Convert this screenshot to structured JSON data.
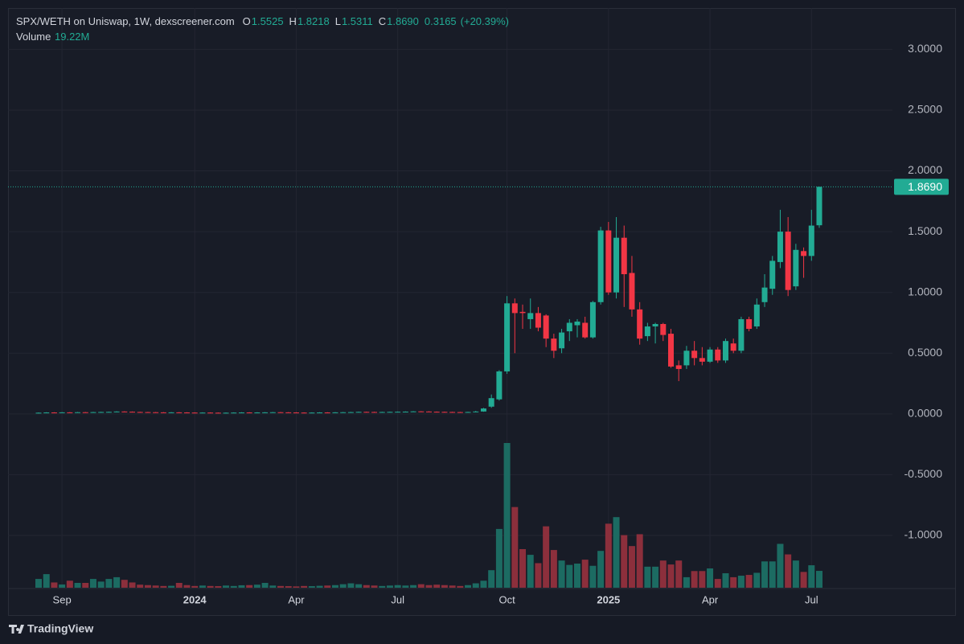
{
  "chart_data": {
    "type": "candlestick",
    "title": "SPX/WETH on Uniswap, 1W, dexscreener.com",
    "ohlc_legend": [
      {
        "key": "O",
        "value": 1.5525
      },
      {
        "key": "H",
        "value": 1.8218
      },
      {
        "key": "L",
        "value": 1.5311
      },
      {
        "key": "C",
        "value": 1.869,
        "label": "1.8690"
      }
    ],
    "change": 0.3165,
    "change_pct": {
      "value": 20.39,
      "label": "(+20.39%)"
    },
    "volume_legend": {
      "name": "Volume",
      "value": 19.22,
      "label": "19.22M"
    },
    "categories": [
      null,
      null,
      null,
      "Sep",
      null,
      null,
      null,
      null,
      null,
      null,
      null,
      null,
      null,
      null,
      null,
      null,
      null,
      null,
      null,
      null,
      "2024",
      null,
      null,
      null,
      null,
      null,
      null,
      null,
      null,
      null,
      null,
      null,
      null,
      "Apr",
      null,
      null,
      null,
      null,
      null,
      null,
      null,
      null,
      null,
      null,
      null,
      null,
      "Jul",
      null,
      null,
      null,
      null,
      null,
      null,
      null,
      null,
      null,
      null,
      null,
      null,
      null,
      "Oct",
      null,
      null,
      null,
      null,
      null,
      null,
      null,
      null,
      null,
      null,
      null,
      null,
      "2025",
      null,
      null,
      null,
      null,
      null,
      null,
      null,
      null,
      null,
      null,
      null,
      null,
      "Apr",
      null,
      null,
      null,
      null,
      null,
      null,
      null,
      null,
      null,
      null,
      null,
      null,
      "Jul",
      null
    ],
    "open": [
      0.009,
      0.01,
      0.012,
      0.011,
      0.013,
      0.012,
      0.014,
      0.013,
      0.015,
      0.016,
      0.017,
      0.02,
      0.018,
      0.016,
      0.015,
      0.014,
      0.013,
      0.012,
      0.013,
      0.012,
      0.011,
      0.01,
      0.011,
      0.01,
      0.009,
      0.01,
      0.011,
      0.012,
      0.011,
      0.012,
      0.013,
      0.014,
      0.013,
      0.012,
      0.011,
      0.01,
      0.011,
      0.012,
      0.011,
      0.013,
      0.014,
      0.015,
      0.017,
      0.016,
      0.015,
      0.016,
      0.017,
      0.018,
      0.019,
      0.021,
      0.02,
      0.018,
      0.017,
      0.016,
      0.015,
      0.014,
      0.016,
      0.02,
      0.06,
      0.12,
      0.35,
      0.91,
      0.84,
      0.78,
      0.83,
      0.81,
      0.62,
      0.54,
      0.68,
      0.73,
      0.75,
      0.63,
      0.92,
      1.51,
      1.0,
      1.45,
      1.16,
      0.86,
      0.64,
      0.72,
      0.74,
      0.66,
      0.4,
      0.4,
      0.52,
      0.46,
      0.43,
      0.53,
      0.44,
      0.58,
      0.52,
      0.78,
      0.72,
      0.92,
      1.03,
      1.25,
      1.5,
      1.05,
      1.34,
      1.3,
      1.5525
    ],
    "high": [
      0.012,
      0.014,
      0.014,
      0.015,
      0.015,
      0.016,
      0.016,
      0.017,
      0.018,
      0.019,
      0.022,
      0.022,
      0.02,
      0.018,
      0.017,
      0.016,
      0.015,
      0.015,
      0.015,
      0.014,
      0.013,
      0.013,
      0.013,
      0.012,
      0.012,
      0.013,
      0.014,
      0.014,
      0.014,
      0.015,
      0.016,
      0.016,
      0.015,
      0.014,
      0.013,
      0.013,
      0.014,
      0.014,
      0.015,
      0.016,
      0.017,
      0.019,
      0.019,
      0.018,
      0.018,
      0.019,
      0.02,
      0.021,
      0.023,
      0.023,
      0.022,
      0.02,
      0.019,
      0.018,
      0.017,
      0.018,
      0.025,
      0.05,
      0.16,
      0.36,
      0.97,
      0.95,
      0.9,
      0.95,
      0.88,
      0.82,
      0.66,
      0.7,
      0.78,
      0.78,
      0.8,
      0.93,
      1.54,
      1.58,
      1.62,
      1.55,
      1.3,
      0.92,
      0.75,
      0.75,
      0.75,
      0.7,
      0.44,
      0.56,
      0.6,
      0.55,
      0.55,
      0.55,
      0.62,
      0.62,
      0.8,
      0.8,
      0.95,
      1.15,
      1.3,
      1.68,
      1.62,
      1.4,
      1.37,
      1.68,
      1.8218
    ],
    "low": [
      0.007,
      0.008,
      0.009,
      0.009,
      0.01,
      0.01,
      0.011,
      0.011,
      0.011,
      0.013,
      0.014,
      0.016,
      0.014,
      0.013,
      0.012,
      0.011,
      0.01,
      0.01,
      0.01,
      0.009,
      0.008,
      0.008,
      0.008,
      0.007,
      0.007,
      0.008,
      0.009,
      0.009,
      0.009,
      0.01,
      0.011,
      0.011,
      0.01,
      0.009,
      0.008,
      0.008,
      0.009,
      0.009,
      0.009,
      0.011,
      0.012,
      0.013,
      0.014,
      0.013,
      0.013,
      0.014,
      0.015,
      0.016,
      0.017,
      0.018,
      0.016,
      0.015,
      0.014,
      0.013,
      0.012,
      0.012,
      0.014,
      0.018,
      0.05,
      0.11,
      0.33,
      0.5,
      0.7,
      0.7,
      0.68,
      0.55,
      0.46,
      0.5,
      0.6,
      0.63,
      0.62,
      0.62,
      0.9,
      0.98,
      0.95,
      0.88,
      0.8,
      0.57,
      0.6,
      0.58,
      0.6,
      0.38,
      0.27,
      0.37,
      0.4,
      0.4,
      0.42,
      0.42,
      0.42,
      0.5,
      0.5,
      0.68,
      0.7,
      0.88,
      0.98,
      1.2,
      0.97,
      1.02,
      1.12,
      1.26,
      1.5311
    ],
    "close": [
      0.01,
      0.012,
      0.011,
      0.013,
      0.012,
      0.014,
      0.013,
      0.015,
      0.016,
      0.017,
      0.02,
      0.018,
      0.016,
      0.015,
      0.014,
      0.013,
      0.012,
      0.013,
      0.012,
      0.011,
      0.01,
      0.011,
      0.01,
      0.009,
      0.01,
      0.011,
      0.012,
      0.011,
      0.012,
      0.013,
      0.014,
      0.013,
      0.012,
      0.011,
      0.01,
      0.011,
      0.012,
      0.011,
      0.013,
      0.014,
      0.015,
      0.017,
      0.016,
      0.015,
      0.016,
      0.017,
      0.018,
      0.019,
      0.021,
      0.02,
      0.018,
      0.017,
      0.016,
      0.015,
      0.014,
      0.016,
      0.02,
      0.045,
      0.13,
      0.35,
      0.91,
      0.83,
      0.83,
      0.83,
      0.71,
      0.62,
      0.52,
      0.67,
      0.75,
      0.76,
      0.63,
      0.92,
      1.51,
      1.0,
      1.45,
      1.15,
      0.86,
      0.62,
      0.72,
      0.74,
      0.65,
      0.39,
      0.37,
      0.52,
      0.46,
      0.43,
      0.53,
      0.44,
      0.6,
      0.52,
      0.78,
      0.7,
      0.9,
      1.04,
      1.26,
      1.5,
      1.02,
      1.35,
      1.3,
      1.55,
      1.869
    ],
    "volume": [
      10,
      15.5,
      6,
      3.7,
      8,
      5.5,
      5.5,
      10,
      7,
      10,
      12,
      9,
      6,
      3.5,
      3,
      2.5,
      2,
      2.2,
      5.5,
      3,
      2,
      2.5,
      2,
      1.8,
      2.5,
      2,
      2.8,
      3,
      3.5,
      5.5,
      2.5,
      2,
      1.8,
      1.5,
      2,
      1.8,
      2.2,
      2.5,
      3,
      4,
      5,
      4,
      3,
      2.5,
      2,
      2.5,
      3,
      2.5,
      3,
      4,
      3,
      3.5,
      3,
      2.5,
      2,
      3,
      5,
      8,
      20,
      67,
      165,
      92,
      44,
      37.5,
      28,
      70,
      43,
      31,
      26,
      27.5,
      32,
      25,
      42,
      73,
      80.5,
      60,
      47.5,
      61,
      24,
      24,
      31,
      26.5,
      31,
      12,
      19,
      19,
      22,
      10,
      16.5,
      12,
      13.7,
      14.6,
      17,
      30,
      30,
      50,
      38,
      31,
      18,
      25.6,
      19.22
    ],
    "up_color": "#22ab94",
    "down_color": "#f23645",
    "up_volume_color": "#1c6b62",
    "down_volume_color": "#8c2f3c",
    "ylim": [
      -1.43,
      3.34
    ],
    "yticks": [
      {
        "value": 3,
        "label": "3.0000"
      },
      {
        "value": 2.5,
        "label": "2.5000"
      },
      {
        "value": 2,
        "label": "2.0000"
      },
      {
        "value": 1.5,
        "label": "1.5000"
      },
      {
        "value": 1,
        "label": "1.0000"
      },
      {
        "value": 0.5,
        "label": "0.5000"
      },
      {
        "value": 0,
        "label": "0.0000"
      },
      {
        "value": -0.5,
        "label": "-0.5000"
      },
      {
        "value": -1,
        "label": "-1.0000"
      }
    ],
    "grid": true
  },
  "brand": "TradingView"
}
